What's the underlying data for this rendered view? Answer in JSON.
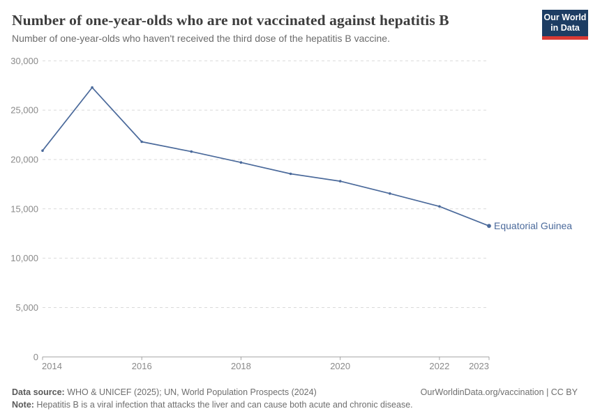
{
  "header": {
    "logo": {
      "line1": "Our World",
      "line2": "in Data"
    }
  },
  "chart_data": {
    "type": "line",
    "title": "Number of one-year-olds who are not vaccinated against hepatitis B",
    "subtitle": "Number of one-year-olds who haven't received the third dose of the hepatitis B vaccine.",
    "x": [
      2014,
      2015,
      2016,
      2017,
      2018,
      2019,
      2020,
      2021,
      2022,
      2023
    ],
    "series": [
      {
        "name": "Equatorial Guinea",
        "values": [
          20900,
          27300,
          21800,
          20800,
          19700,
          18550,
          17800,
          16550,
          15250,
          13270
        ],
        "color": "#4b6a9b"
      }
    ],
    "ylim": [
      0,
      30000
    ],
    "yticks": [
      0,
      5000,
      10000,
      15000,
      20000,
      25000,
      30000
    ],
    "ytick_labels": [
      "0",
      "5,000",
      "10,000",
      "15,000",
      "20,000",
      "25,000",
      "30,000"
    ],
    "xticks": [
      2014,
      2016,
      2018,
      2020,
      2022,
      2023
    ],
    "xtick_labels": [
      "2014",
      "2016",
      "2018",
      "2020",
      "2022",
      "2023"
    ],
    "grid": "horizontal-dashed",
    "legend_position": "end-of-line-label"
  },
  "footer": {
    "data_source_label": "Data source:",
    "data_source_text": " WHO & UNICEF (2025); UN, World Population Prospects (2024)",
    "link_text": "OurWorldinData.org/vaccination | CC BY",
    "note_label": "Note:",
    "note_text": " Hepatitis B is a viral infection that attacks the liver and can cause both acute and chronic disease."
  },
  "colors": {
    "line": "#4b6a9b",
    "grid": "#d9d9d9",
    "axis": "#a3a3a3",
    "tick_text": "#8a8a8a",
    "logo_navy": "#1d3d63",
    "logo_red": "#d93a34"
  }
}
